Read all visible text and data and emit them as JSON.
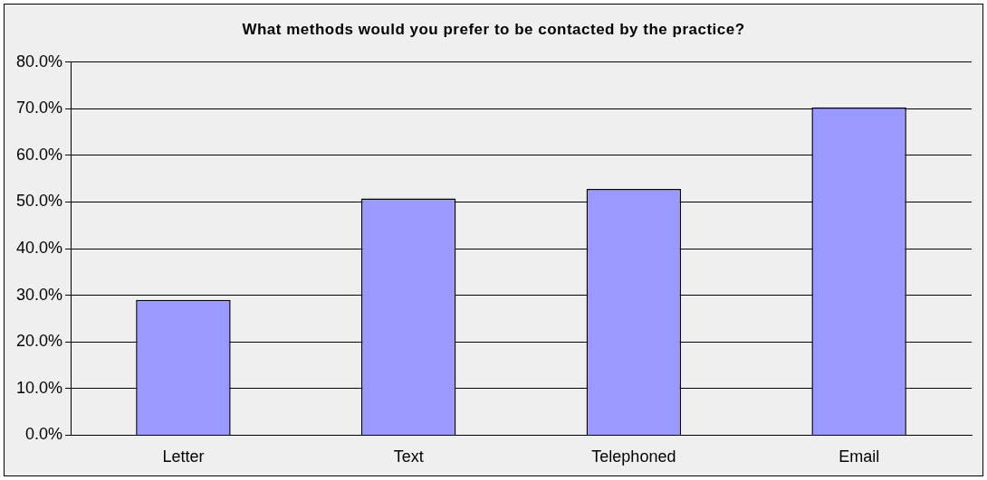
{
  "chart_data": {
    "type": "bar",
    "title": "What methods would you prefer to be contacted by the practice?",
    "categories": [
      "Letter",
      "Text",
      "Telephoned",
      "Email"
    ],
    "values": [
      29.0,
      50.8,
      52.8,
      70.3
    ],
    "color": "#9999ff",
    "ylim": [
      0,
      80
    ],
    "yticks": [
      {
        "value": 0,
        "label": "0.0%"
      },
      {
        "value": 10,
        "label": "10.0%"
      },
      {
        "value": 20,
        "label": "20.0%"
      },
      {
        "value": 30,
        "label": "30.0%"
      },
      {
        "value": 40,
        "label": "40.0%"
      },
      {
        "value": 50,
        "label": "50.0%"
      },
      {
        "value": 60,
        "label": "60.0%"
      },
      {
        "value": 70,
        "label": "70.0%"
      },
      {
        "value": 80,
        "label": "80.0%"
      }
    ],
    "grid": "y",
    "legend": false
  }
}
